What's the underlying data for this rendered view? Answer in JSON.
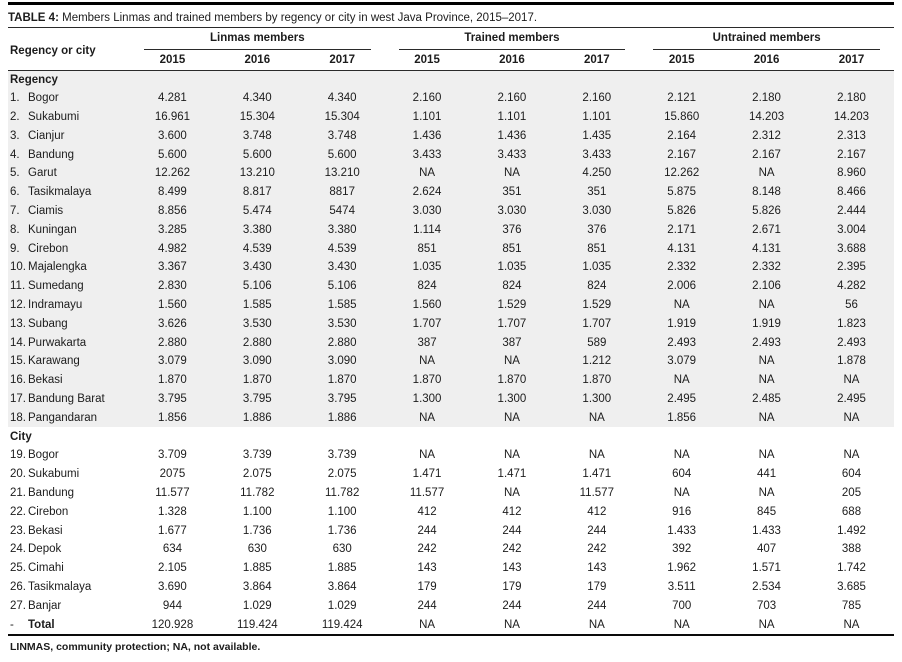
{
  "title": {
    "label": "TABLE 4:",
    "text": "Members Linmas and trained members by regency or city in west Java Province, 2015–2017."
  },
  "table": {
    "row_header": "Regency or city",
    "groups": [
      {
        "label": "Linmas members",
        "years": [
          "2015",
          "2016",
          "2017"
        ]
      },
      {
        "label": "Trained members",
        "years": [
          "2015",
          "2016",
          "2017"
        ]
      },
      {
        "label": "Untrained members",
        "years": [
          "2015",
          "2016",
          "2017"
        ]
      }
    ],
    "sections": [
      {
        "label": "Regency",
        "shaded": true,
        "rows": [
          {
            "no": "1.",
            "name": "Bogor",
            "values": [
              "4.281",
              "4.340",
              "4.340",
              "2.160",
              "2.160",
              "2.160",
              "2.121",
              "2.180",
              "2.180"
            ]
          },
          {
            "no": "2.",
            "name": "Sukabumi",
            "values": [
              "16.961",
              "15.304",
              "15.304",
              "1.101",
              "1.101",
              "1.101",
              "15.860",
              "14.203",
              "14.203"
            ]
          },
          {
            "no": "3.",
            "name": "Cianjur",
            "values": [
              "3.600",
              "3.748",
              "3.748",
              "1.436",
              "1.436",
              "1.435",
              "2.164",
              "2.312",
              "2.313"
            ]
          },
          {
            "no": "4.",
            "name": "Bandung",
            "values": [
              "5.600",
              "5.600",
              "5.600",
              "3.433",
              "3.433",
              "3.433",
              "2.167",
              "2.167",
              "2.167"
            ]
          },
          {
            "no": "5.",
            "name": "Garut",
            "values": [
              "12.262",
              "13.210",
              "13.210",
              "NA",
              "NA",
              "4.250",
              "12.262",
              "NA",
              "8.960"
            ]
          },
          {
            "no": "6.",
            "name": "Tasikmalaya",
            "values": [
              "8.499",
              "8.817",
              "8817",
              "2.624",
              "351",
              "351",
              "5.875",
              "8.148",
              "8.466"
            ]
          },
          {
            "no": "7.",
            "name": "Ciamis",
            "values": [
              "8.856",
              "5.474",
              "5474",
              "3.030",
              "3.030",
              "3.030",
              "5.826",
              "5.826",
              "2.444"
            ]
          },
          {
            "no": "8.",
            "name": "Kuningan",
            "values": [
              "3.285",
              "3.380",
              "3.380",
              "1.114",
              "376",
              "376",
              "2.171",
              "2.671",
              "3.004"
            ]
          },
          {
            "no": "9.",
            "name": "Cirebon",
            "values": [
              "4.982",
              "4.539",
              "4.539",
              "851",
              "851",
              "851",
              "4.131",
              "4.131",
              "3.688"
            ]
          },
          {
            "no": "10.",
            "name": "Majalengka",
            "values": [
              "3.367",
              "3.430",
              "3.430",
              "1.035",
              "1.035",
              "1.035",
              "2.332",
              "2.332",
              "2.395"
            ]
          },
          {
            "no": "11.",
            "name": "Sumedang",
            "values": [
              "2.830",
              "5.106",
              "5.106",
              "824",
              "824",
              "824",
              "2.006",
              "2.106",
              "4.282"
            ]
          },
          {
            "no": "12.",
            "name": "Indramayu",
            "values": [
              "1.560",
              "1.585",
              "1.585",
              "1.560",
              "1.529",
              "1.529",
              "NA",
              "NA",
              "56"
            ]
          },
          {
            "no": "13.",
            "name": "Subang",
            "values": [
              "3.626",
              "3.530",
              "3.530",
              "1.707",
              "1.707",
              "1.707",
              "1.919",
              "1.919",
              "1.823"
            ]
          },
          {
            "no": "14.",
            "name": "Purwakarta",
            "values": [
              "2.880",
              "2.880",
              "2.880",
              "387",
              "387",
              "589",
              "2.493",
              "2.493",
              "2.493"
            ]
          },
          {
            "no": "15.",
            "name": "Karawang",
            "values": [
              "3.079",
              "3.090",
              "3.090",
              "NA",
              "NA",
              "1.212",
              "3.079",
              "NA",
              "1.878"
            ]
          },
          {
            "no": "16.",
            "name": "Bekasi",
            "values": [
              "1.870",
              "1.870",
              "1.870",
              "1.870",
              "1.870",
              "1.870",
              "NA",
              "NA",
              "NA"
            ]
          },
          {
            "no": "17.",
            "name": "Bandung Barat",
            "values": [
              "3.795",
              "3.795",
              "3.795",
              "1.300",
              "1.300",
              "1.300",
              "2.495",
              "2.485",
              "2.495"
            ]
          },
          {
            "no": "18.",
            "name": "Pangandaran",
            "values": [
              "1.856",
              "1.886",
              "1.886",
              "NA",
              "NA",
              "NA",
              "1.856",
              "NA",
              "NA"
            ]
          }
        ]
      },
      {
        "label": "City",
        "shaded": false,
        "rows": [
          {
            "no": "19.",
            "name": "Bogor",
            "values": [
              "3.709",
              "3.739",
              "3.739",
              "NA",
              "NA",
              "NA",
              "NA",
              "NA",
              "NA"
            ]
          },
          {
            "no": "20.",
            "name": "Sukabumi",
            "values": [
              "2075",
              "2.075",
              "2.075",
              "1.471",
              "1.471",
              "1.471",
              "604",
              "441",
              "604"
            ]
          },
          {
            "no": "21.",
            "name": "Bandung",
            "values": [
              "11.577",
              "11.782",
              "11.782",
              "11.577",
              "NA",
              "11.577",
              "NA",
              "NA",
              "205"
            ]
          },
          {
            "no": "22.",
            "name": "Cirebon",
            "values": [
              "1.328",
              "1.100",
              "1.100",
              "412",
              "412",
              "412",
              "916",
              "845",
              "688"
            ]
          },
          {
            "no": "23.",
            "name": "Bekasi",
            "values": [
              "1.677",
              "1.736",
              "1.736",
              "244",
              "244",
              "244",
              "1.433",
              "1.433",
              "1.492"
            ]
          },
          {
            "no": "24.",
            "name": "Depok",
            "values": [
              "634",
              "630",
              "630",
              "242",
              "242",
              "242",
              "392",
              "407",
              "388"
            ]
          },
          {
            "no": "25.",
            "name": "Cimahi",
            "values": [
              "2.105",
              "1.885",
              "1.885",
              "143",
              "143",
              "143",
              "1.962",
              "1.571",
              "1.742"
            ]
          },
          {
            "no": "26.",
            "name": "Tasikmalaya",
            "values": [
              "3.690",
              "3.864",
              "3.864",
              "179",
              "179",
              "179",
              "3.511",
              "2.534",
              "3.685"
            ]
          },
          {
            "no": "27.",
            "name": "Banjar",
            "values": [
              "944",
              "1.029",
              "1.029",
              "244",
              "244",
              "244",
              "700",
              "703",
              "785"
            ]
          }
        ]
      }
    ],
    "total": {
      "no": "-",
      "name": "Total",
      "values": [
        "120.928",
        "119.424",
        "119.424",
        "NA",
        "NA",
        "NA",
        "NA",
        "NA",
        "NA"
      ]
    }
  },
  "footnote": "LINMAS, community protection; NA, not available.",
  "colors": {
    "shaded_row": "#efefef",
    "rule": "#2a2a2a",
    "text": "#1c1c1c"
  }
}
